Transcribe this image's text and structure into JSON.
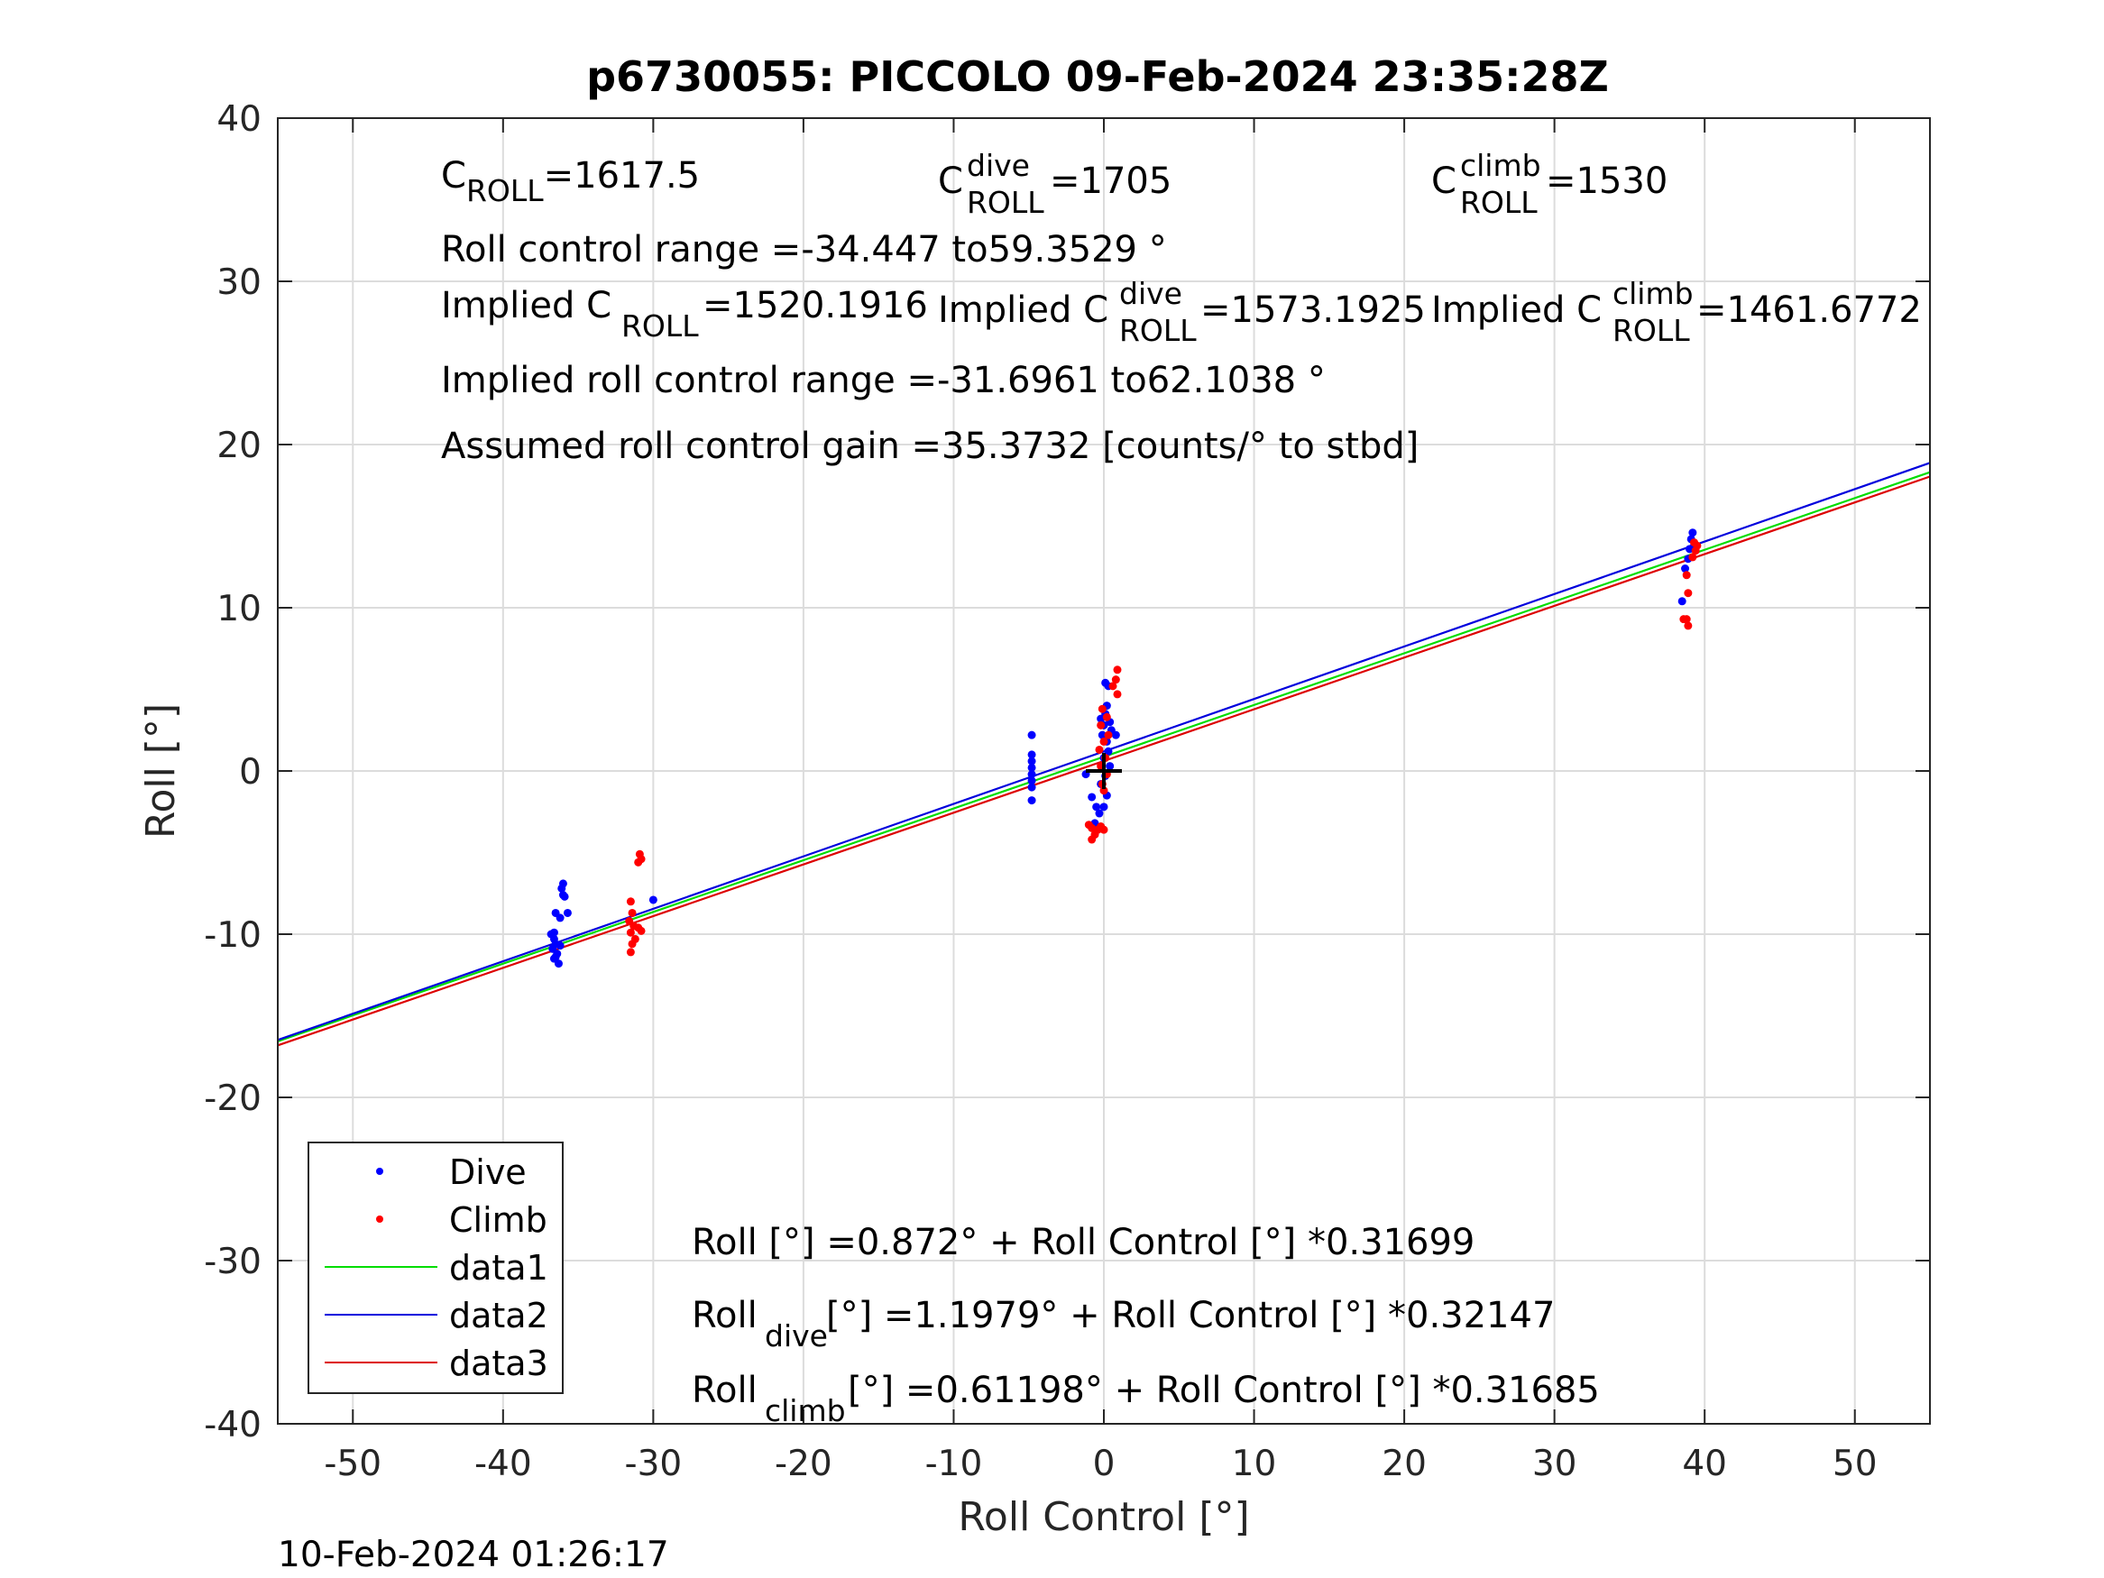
{
  "chart_data": {
    "type": "scatter",
    "title": "p6730055: PICCOLO 09-Feb-2024 23:35:28Z",
    "xlabel": "Roll Control [°]",
    "ylabel": "Roll [°]",
    "xlim": [
      -55,
      55
    ],
    "ylim": [
      -40,
      40
    ],
    "xticks": [
      -50,
      -40,
      -30,
      -20,
      -10,
      0,
      10,
      20,
      30,
      40,
      50
    ],
    "yticks": [
      -40,
      -30,
      -20,
      -10,
      0,
      10,
      20,
      30,
      40
    ],
    "xtick_labels": [
      "-50",
      "-40",
      "-30",
      "-20",
      "-10",
      "0",
      "10",
      "20",
      "30",
      "40",
      "50"
    ],
    "ytick_labels": [
      "-40",
      "-30",
      "-20",
      "-10",
      "0",
      "10",
      "20",
      "30",
      "40"
    ],
    "grid": true,
    "legend_position": "bottom-left",
    "timestamp": "10-Feb-2024 01:26:17",
    "center_marker": [
      0,
      0
    ],
    "scatter_series": [
      {
        "name": "Dive",
        "color": "#0000ff",
        "points": [
          [
            -36.8,
            -10.0
          ],
          [
            -36.6,
            -10.3
          ],
          [
            -36.5,
            -10.6
          ],
          [
            -36.7,
            -10.9
          ],
          [
            -36.4,
            -11.2
          ],
          [
            -36.6,
            -11.5
          ],
          [
            -36.3,
            -11.8
          ],
          [
            -36.5,
            -11.4
          ],
          [
            -36.2,
            -10.7
          ],
          [
            -36.6,
            -9.9
          ],
          [
            -36.5,
            -8.7
          ],
          [
            -36.0,
            -7.6
          ],
          [
            -36.1,
            -7.2
          ],
          [
            -36.0,
            -6.9
          ],
          [
            -35.9,
            -7.7
          ],
          [
            -35.7,
            -8.7
          ],
          [
            -36.2,
            -9.0
          ],
          [
            -30.0,
            -7.9
          ],
          [
            -4.8,
            2.2
          ],
          [
            -4.8,
            1.0
          ],
          [
            -4.8,
            0.6
          ],
          [
            -4.8,
            0.2
          ],
          [
            -4.8,
            -0.2
          ],
          [
            -4.8,
            -0.6
          ],
          [
            -4.8,
            -1.0
          ],
          [
            -4.8,
            -1.8
          ],
          [
            -1.2,
            -0.2
          ],
          [
            -0.8,
            -1.6
          ],
          [
            -0.5,
            -2.2
          ],
          [
            -0.3,
            -2.6
          ],
          [
            -0.6,
            -3.2
          ],
          [
            0.1,
            5.4
          ],
          [
            0.3,
            5.2
          ],
          [
            0.2,
            4.0
          ],
          [
            0.1,
            3.5
          ],
          [
            -0.2,
            3.2
          ],
          [
            0.4,
            3.0
          ],
          [
            0.0,
            2.8
          ],
          [
            0.5,
            2.5
          ],
          [
            -0.1,
            2.2
          ],
          [
            0.2,
            1.8
          ],
          [
            0.3,
            1.2
          ],
          [
            0.0,
            0.8
          ],
          [
            0.4,
            0.3
          ],
          [
            0.1,
            -0.3
          ],
          [
            -0.2,
            -0.8
          ],
          [
            0.2,
            -1.5
          ],
          [
            0.0,
            -2.2
          ],
          [
            0.8,
            2.2
          ],
          [
            38.5,
            10.4
          ],
          [
            38.7,
            12.4
          ],
          [
            39.0,
            13.6
          ],
          [
            39.1,
            14.2
          ],
          [
            39.2,
            14.6
          ],
          [
            38.9,
            13.0
          ],
          [
            39.3,
            13.8
          ]
        ]
      },
      {
        "name": "Climb",
        "color": "#ff0000",
        "points": [
          [
            -31.5,
            -8.0
          ],
          [
            -31.4,
            -8.7
          ],
          [
            -31.6,
            -9.2
          ],
          [
            -31.3,
            -9.5
          ],
          [
            -31.5,
            -9.9
          ],
          [
            -31.2,
            -10.3
          ],
          [
            -31.4,
            -10.6
          ],
          [
            -31.5,
            -11.1
          ],
          [
            -31.0,
            -9.6
          ],
          [
            -30.8,
            -9.8
          ],
          [
            -30.9,
            -5.1
          ],
          [
            -30.8,
            -5.4
          ],
          [
            -31.0,
            -5.6
          ],
          [
            0.9,
            6.2
          ],
          [
            0.8,
            5.6
          ],
          [
            0.6,
            5.2
          ],
          [
            0.9,
            4.7
          ],
          [
            -0.1,
            3.8
          ],
          [
            0.2,
            3.3
          ],
          [
            -0.2,
            2.8
          ],
          [
            0.3,
            2.2
          ],
          [
            0.0,
            1.8
          ],
          [
            -0.3,
            1.3
          ],
          [
            0.1,
            0.8
          ],
          [
            -0.2,
            0.3
          ],
          [
            0.2,
            -0.2
          ],
          [
            -0.1,
            -0.8
          ],
          [
            0.0,
            -1.2
          ],
          [
            -1.0,
            -3.3
          ],
          [
            -0.8,
            -3.5
          ],
          [
            -0.6,
            -3.9
          ],
          [
            -0.8,
            -4.2
          ],
          [
            -0.4,
            -3.6
          ],
          [
            -0.2,
            -3.4
          ],
          [
            0.0,
            -3.6
          ],
          [
            38.6,
            9.3
          ],
          [
            38.9,
            8.9
          ],
          [
            38.8,
            9.3
          ],
          [
            38.9,
            10.9
          ],
          [
            38.8,
            12.0
          ],
          [
            39.2,
            13.1
          ],
          [
            39.4,
            13.5
          ],
          [
            39.3,
            14.0
          ],
          [
            39.5,
            13.8
          ]
        ]
      }
    ],
    "line_series": [
      {
        "name": "data1",
        "color": "#00dd00",
        "intercept": 0.872,
        "slope": 0.31699
      },
      {
        "name": "data2",
        "color": "#0000dd",
        "intercept": 1.1979,
        "slope": 0.32147
      },
      {
        "name": "data3",
        "color": "#dd0000",
        "intercept": 0.61198,
        "slope": 0.31685
      }
    ]
  },
  "annotations": {
    "c_roll": {
      "base": "C",
      "sub": "ROLL",
      "value": "=1617.5"
    },
    "c_roll_dive": {
      "base": "C",
      "sup": "dive",
      "sub": "ROLL",
      "value": " =1705"
    },
    "c_roll_climb": {
      "base": "C",
      "sup": "climb",
      "sub": "ROLL",
      "value": " =1530"
    },
    "roll_control_range": "Roll control range =-34.447 to59.3529 °",
    "implied_c_roll": {
      "prefix": "Implied C",
      "sub": "ROLL",
      "value": " =1520.1916"
    },
    "implied_c_roll_dive": {
      "prefix": "Implied C",
      "sup": "dive",
      "sub": "ROLL",
      "value": " =1573.1925"
    },
    "implied_c_roll_climb": {
      "prefix": "Implied C",
      "sup": "climb",
      "sub": "ROLL",
      "value": " =1461.6772"
    },
    "implied_roll_control_range": "Implied roll control range =-31.6961 to62.1038 °",
    "assumed_gain": "Assumed roll control gain =35.3732 [counts/° to stbd]",
    "fit_all": {
      "prefix": "Roll [°] =0.872° + Roll Control [°] *0.31699"
    },
    "fit_dive": {
      "base": "Roll",
      "sub": "dive",
      "rest": " [°] =1.1979° + Roll Control [°] *0.32147"
    },
    "fit_climb": {
      "base": "Roll",
      "sub": "climb",
      "rest": " [°] =0.61198° + Roll Control [°] *0.31685"
    }
  }
}
